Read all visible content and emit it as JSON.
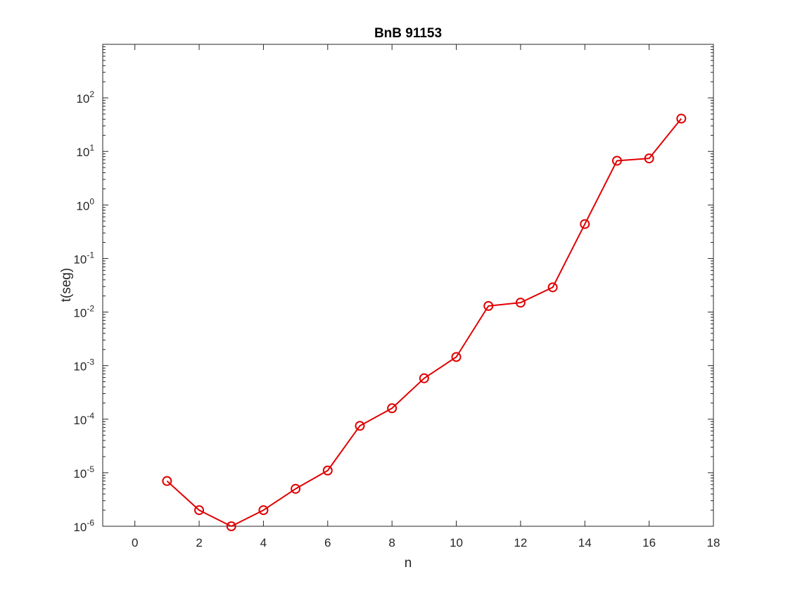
{
  "chart_data": {
    "type": "line",
    "title": "BnB 91153",
    "xlabel": "n",
    "ylabel": "t(seg)",
    "xlim": [
      -1,
      18
    ],
    "ylim": [
      1e-06,
      1000
    ],
    "yscale": "log",
    "grid": false,
    "x_ticks": [
      0,
      2,
      4,
      6,
      8,
      10,
      12,
      14,
      16,
      18
    ],
    "y_ticks": [
      {
        "exp": -6,
        "base": "10",
        "sup": "-6"
      },
      {
        "exp": -5,
        "base": "10",
        "sup": "-5"
      },
      {
        "exp": -4,
        "base": "10",
        "sup": "-4"
      },
      {
        "exp": -3,
        "base": "10",
        "sup": "-3"
      },
      {
        "exp": -2,
        "base": "10",
        "sup": "-2"
      },
      {
        "exp": -1,
        "base": "10",
        "sup": "-1"
      },
      {
        "exp": 0,
        "base": "10",
        "sup": "0"
      },
      {
        "exp": 1,
        "base": "10",
        "sup": "1"
      },
      {
        "exp": 2,
        "base": "10",
        "sup": "2"
      }
    ],
    "series": [
      {
        "color": "#e00000",
        "marker": "circle",
        "x": [
          1,
          2,
          3,
          4,
          5,
          6,
          7,
          8,
          9,
          10,
          11,
          12,
          13,
          14,
          15,
          16,
          17
        ],
        "y": [
          7e-06,
          2e-06,
          1e-06,
          2e-06,
          5e-06,
          1.1e-05,
          7.5e-05,
          0.00016,
          0.00058,
          0.00145,
          0.013,
          0.015,
          0.029,
          0.44,
          6.7,
          7.4,
          41
        ]
      }
    ]
  }
}
